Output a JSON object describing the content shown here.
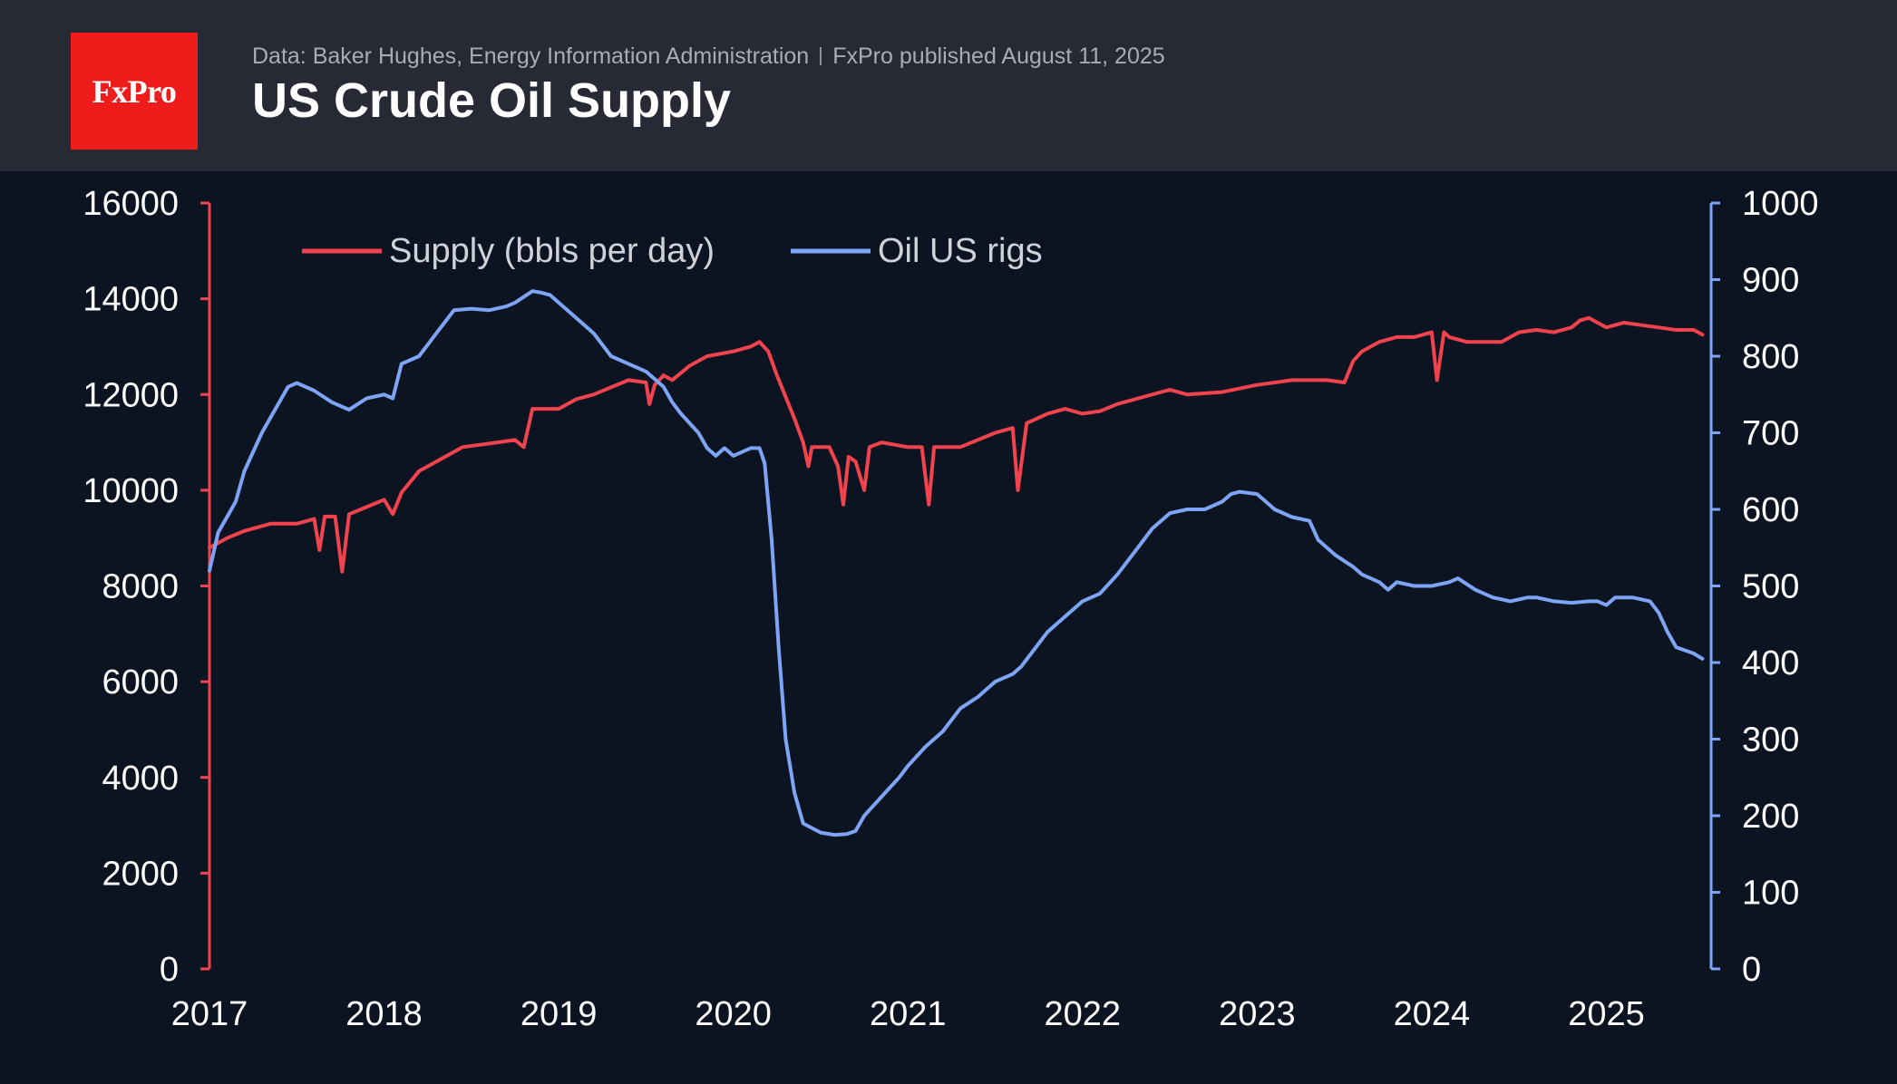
{
  "header": {
    "logo_text": "FxPro",
    "source_data": "Data: Baker Hughes, Energy Information Administration",
    "source_published": "FxPro published August 11, 2025",
    "title": "US Crude Oil Supply"
  },
  "colors": {
    "header_bg": "#272a35",
    "chart_bg": "#0c1422",
    "brand_red": "#ef1c1c",
    "supply": "#f0434d",
    "rigs": "#7ea4f5"
  },
  "chart_data": {
    "type": "line",
    "title": "US Crude Oil Supply",
    "xlabel": "",
    "ylabel": "",
    "x_ticks": [
      "2017",
      "2018",
      "2019",
      "2020",
      "2021",
      "2022",
      "2023",
      "2024",
      "2025"
    ],
    "xlim": [
      2017,
      2025.6
    ],
    "y_left": {
      "lim": [
        0,
        16000
      ],
      "ticks": [
        "0",
        "2000",
        "4000",
        "6000",
        "8000",
        "10000",
        "12000",
        "14000",
        "16000"
      ]
    },
    "y_right": {
      "lim": [
        0,
        1000
      ],
      "ticks": [
        "0",
        "100",
        "200",
        "300",
        "400",
        "500",
        "600",
        "700",
        "800",
        "900",
        "1000"
      ]
    },
    "grid": false,
    "legend_position": "top-left",
    "series": [
      {
        "name": "Supply (bbls per day)",
        "axis": "left",
        "color": "#f0434d",
        "points": [
          [
            2017.0,
            8800
          ],
          [
            2017.1,
            9000
          ],
          [
            2017.2,
            9150
          ],
          [
            2017.35,
            9300
          ],
          [
            2017.5,
            9300
          ],
          [
            2017.6,
            9400
          ],
          [
            2017.63,
            8750
          ],
          [
            2017.66,
            9450
          ],
          [
            2017.72,
            9450
          ],
          [
            2017.76,
            8300
          ],
          [
            2017.8,
            9500
          ],
          [
            2017.9,
            9650
          ],
          [
            2018.0,
            9800
          ],
          [
            2018.05,
            9500
          ],
          [
            2018.1,
            9950
          ],
          [
            2018.2,
            10400
          ],
          [
            2018.35,
            10700
          ],
          [
            2018.45,
            10900
          ],
          [
            2018.55,
            10950
          ],
          [
            2018.65,
            11000
          ],
          [
            2018.75,
            11050
          ],
          [
            2018.8,
            10900
          ],
          [
            2018.85,
            11700
          ],
          [
            2018.95,
            11700
          ],
          [
            2019.0,
            11700
          ],
          [
            2019.1,
            11900
          ],
          [
            2019.2,
            12000
          ],
          [
            2019.3,
            12150
          ],
          [
            2019.4,
            12300
          ],
          [
            2019.5,
            12250
          ],
          [
            2019.52,
            11800
          ],
          [
            2019.55,
            12200
          ],
          [
            2019.6,
            12400
          ],
          [
            2019.65,
            12300
          ],
          [
            2019.75,
            12600
          ],
          [
            2019.85,
            12800
          ],
          [
            2020.0,
            12900
          ],
          [
            2020.1,
            13000
          ],
          [
            2020.15,
            13100
          ],
          [
            2020.2,
            12900
          ],
          [
            2020.25,
            12400
          ],
          [
            2020.35,
            11500
          ],
          [
            2020.4,
            11000
          ],
          [
            2020.43,
            10500
          ],
          [
            2020.45,
            10900
          ],
          [
            2020.55,
            10900
          ],
          [
            2020.6,
            10500
          ],
          [
            2020.63,
            9700
          ],
          [
            2020.66,
            10700
          ],
          [
            2020.7,
            10600
          ],
          [
            2020.75,
            10000
          ],
          [
            2020.78,
            10900
          ],
          [
            2020.85,
            11000
          ],
          [
            2021.0,
            10900
          ],
          [
            2021.08,
            10900
          ],
          [
            2021.12,
            9700
          ],
          [
            2021.15,
            10900
          ],
          [
            2021.3,
            10900
          ],
          [
            2021.5,
            11200
          ],
          [
            2021.6,
            11300
          ],
          [
            2021.63,
            10000
          ],
          [
            2021.68,
            11400
          ],
          [
            2021.8,
            11600
          ],
          [
            2021.9,
            11700
          ],
          [
            2022.0,
            11600
          ],
          [
            2022.1,
            11650
          ],
          [
            2022.2,
            11800
          ],
          [
            2022.3,
            11900
          ],
          [
            2022.5,
            12100
          ],
          [
            2022.6,
            12000
          ],
          [
            2022.8,
            12050
          ],
          [
            2023.0,
            12200
          ],
          [
            2023.2,
            12300
          ],
          [
            2023.4,
            12300
          ],
          [
            2023.5,
            12250
          ],
          [
            2023.55,
            12700
          ],
          [
            2023.6,
            12900
          ],
          [
            2023.7,
            13100
          ],
          [
            2023.8,
            13200
          ],
          [
            2023.9,
            13200
          ],
          [
            2024.0,
            13300
          ],
          [
            2024.03,
            12300
          ],
          [
            2024.07,
            13300
          ],
          [
            2024.1,
            13200
          ],
          [
            2024.2,
            13100
          ],
          [
            2024.4,
            13100
          ],
          [
            2024.5,
            13300
          ],
          [
            2024.6,
            13350
          ],
          [
            2024.7,
            13300
          ],
          [
            2024.8,
            13400
          ],
          [
            2024.85,
            13550
          ],
          [
            2024.9,
            13600
          ],
          [
            2024.95,
            13500
          ],
          [
            2025.0,
            13400
          ],
          [
            2025.1,
            13500
          ],
          [
            2025.2,
            13450
          ],
          [
            2025.3,
            13400
          ],
          [
            2025.4,
            13350
          ],
          [
            2025.5,
            13350
          ],
          [
            2025.55,
            13250
          ]
        ]
      },
      {
        "name": "Oil US rigs",
        "axis": "right",
        "color": "#7ea4f5",
        "points": [
          [
            2017.0,
            520
          ],
          [
            2017.05,
            570
          ],
          [
            2017.1,
            590
          ],
          [
            2017.15,
            610
          ],
          [
            2017.2,
            650
          ],
          [
            2017.3,
            700
          ],
          [
            2017.4,
            740
          ],
          [
            2017.45,
            760
          ],
          [
            2017.5,
            765
          ],
          [
            2017.6,
            755
          ],
          [
            2017.7,
            740
          ],
          [
            2017.8,
            730
          ],
          [
            2017.9,
            745
          ],
          [
            2018.0,
            750
          ],
          [
            2018.05,
            745
          ],
          [
            2018.1,
            790
          ],
          [
            2018.2,
            800
          ],
          [
            2018.3,
            830
          ],
          [
            2018.4,
            860
          ],
          [
            2018.5,
            862
          ],
          [
            2018.6,
            860
          ],
          [
            2018.7,
            865
          ],
          [
            2018.75,
            870
          ],
          [
            2018.85,
            885
          ],
          [
            2018.9,
            883
          ],
          [
            2018.95,
            880
          ],
          [
            2019.0,
            870
          ],
          [
            2019.05,
            860
          ],
          [
            2019.1,
            850
          ],
          [
            2019.2,
            830
          ],
          [
            2019.3,
            800
          ],
          [
            2019.4,
            790
          ],
          [
            2019.5,
            780
          ],
          [
            2019.6,
            760
          ],
          [
            2019.65,
            740
          ],
          [
            2019.7,
            725
          ],
          [
            2019.8,
            700
          ],
          [
            2019.85,
            680
          ],
          [
            2019.9,
            670
          ],
          [
            2019.95,
            680
          ],
          [
            2020.0,
            670
          ],
          [
            2020.1,
            680
          ],
          [
            2020.15,
            680
          ],
          [
            2020.18,
            660
          ],
          [
            2020.22,
            560
          ],
          [
            2020.26,
            420
          ],
          [
            2020.3,
            300
          ],
          [
            2020.35,
            230
          ],
          [
            2020.4,
            190
          ],
          [
            2020.5,
            178
          ],
          [
            2020.58,
            175
          ],
          [
            2020.65,
            176
          ],
          [
            2020.7,
            180
          ],
          [
            2020.75,
            200
          ],
          [
            2020.85,
            225
          ],
          [
            2020.95,
            250
          ],
          [
            2021.0,
            265
          ],
          [
            2021.1,
            290
          ],
          [
            2021.2,
            310
          ],
          [
            2021.3,
            340
          ],
          [
            2021.4,
            355
          ],
          [
            2021.5,
            375
          ],
          [
            2021.6,
            385
          ],
          [
            2021.65,
            395
          ],
          [
            2021.7,
            410
          ],
          [
            2021.8,
            440
          ],
          [
            2021.9,
            460
          ],
          [
            2022.0,
            480
          ],
          [
            2022.1,
            490
          ],
          [
            2022.2,
            515
          ],
          [
            2022.3,
            545
          ],
          [
            2022.4,
            575
          ],
          [
            2022.5,
            595
          ],
          [
            2022.6,
            600
          ],
          [
            2022.7,
            600
          ],
          [
            2022.8,
            610
          ],
          [
            2022.85,
            620
          ],
          [
            2022.9,
            623
          ],
          [
            2023.0,
            620
          ],
          [
            2023.05,
            610
          ],
          [
            2023.1,
            600
          ],
          [
            2023.2,
            590
          ],
          [
            2023.3,
            585
          ],
          [
            2023.35,
            560
          ],
          [
            2023.45,
            540
          ],
          [
            2023.55,
            525
          ],
          [
            2023.6,
            515
          ],
          [
            2023.7,
            505
          ],
          [
            2023.75,
            495
          ],
          [
            2023.8,
            505
          ],
          [
            2023.9,
            500
          ],
          [
            2024.0,
            500
          ],
          [
            2024.1,
            505
          ],
          [
            2024.15,
            510
          ],
          [
            2024.25,
            495
          ],
          [
            2024.35,
            485
          ],
          [
            2024.45,
            480
          ],
          [
            2024.55,
            485
          ],
          [
            2024.6,
            485
          ],
          [
            2024.7,
            480
          ],
          [
            2024.8,
            478
          ],
          [
            2024.9,
            480
          ],
          [
            2024.95,
            480
          ],
          [
            2025.0,
            475
          ],
          [
            2025.05,
            485
          ],
          [
            2025.15,
            485
          ],
          [
            2025.25,
            480
          ],
          [
            2025.3,
            465
          ],
          [
            2025.35,
            440
          ],
          [
            2025.4,
            420
          ],
          [
            2025.5,
            412
          ],
          [
            2025.55,
            405
          ]
        ]
      }
    ]
  }
}
